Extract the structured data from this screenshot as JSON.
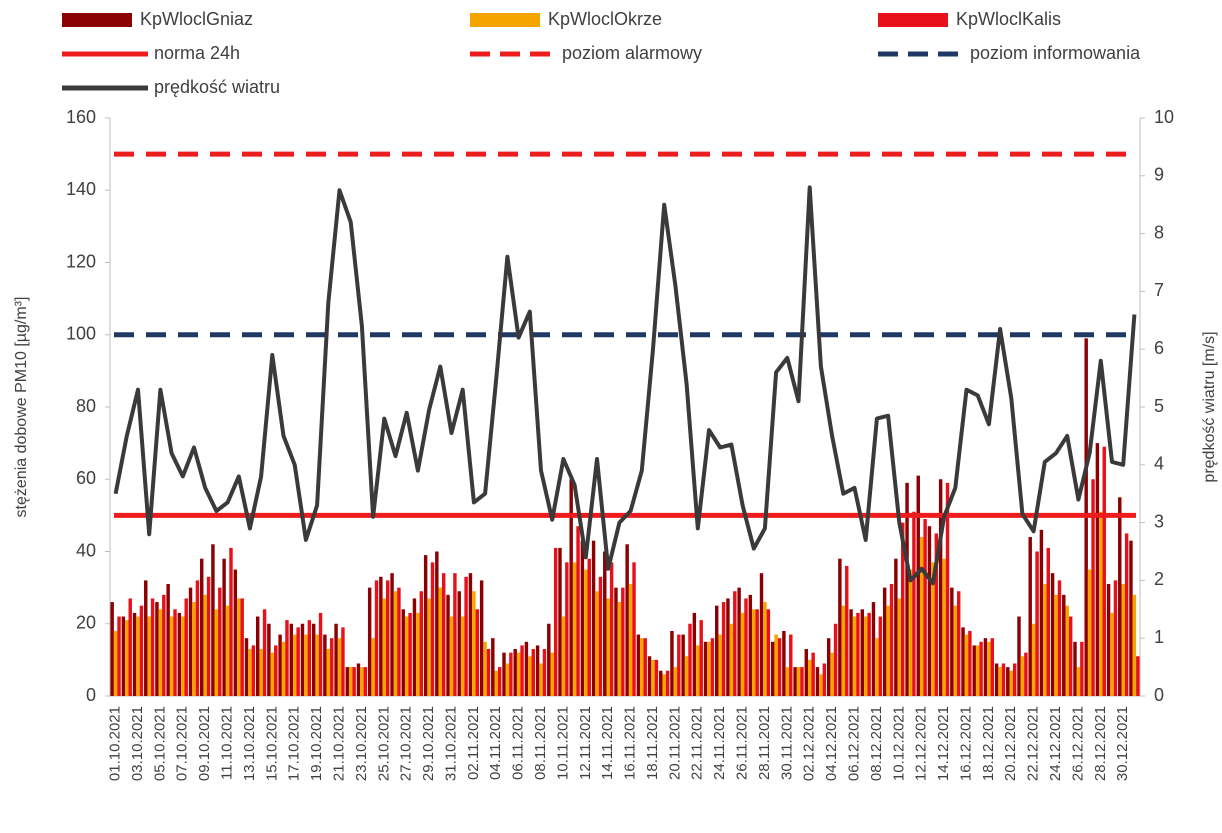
{
  "chart_data": {
    "type": "bar",
    "categories": [
      "01.10.2021",
      null,
      "03.10.2021",
      null,
      "05.10.2021",
      null,
      "07.10.2021",
      null,
      "09.10.2021",
      null,
      "11.10.2021",
      null,
      "13.10.2021",
      null,
      "15.10.2021",
      null,
      "17.10.2021",
      null,
      "19.10.2021",
      null,
      "21.10.2021",
      null,
      "23.10.2021",
      null,
      "25.10.2021",
      null,
      "27.10.2021",
      null,
      "29.10.2021",
      null,
      "31.10.2021",
      null,
      "02.11.2021",
      null,
      "04.11.2021",
      null,
      "06.11.2021",
      null,
      "08.11.2021",
      null,
      "10.11.2021",
      null,
      "12.11.2021",
      null,
      "14.11.2021",
      null,
      "16.11.2021",
      null,
      "18.11.2021",
      null,
      "20.11.2021",
      null,
      "22.11.2021",
      null,
      "24.11.2021",
      null,
      "26.11.2021",
      null,
      "28.11.2021",
      null,
      "30.11.2021",
      null,
      "02.12.2021",
      null,
      "04.12.2021",
      null,
      "06.12.2021",
      null,
      "08.12.2021",
      null,
      "10.12.2021",
      null,
      "12.12.2021",
      null,
      "14.12.2021",
      null,
      "16.12.2021",
      null,
      "18.12.2021",
      null,
      "20.12.2021",
      null,
      "22.12.2021",
      null,
      "24.12.2021",
      null,
      "26.12.2021",
      null,
      "28.12.2021",
      null,
      "30.12.2021",
      null
    ],
    "series": [
      {
        "name": "KpWloclGniaz",
        "type": "bar",
        "color": "#8b0000",
        "values": [
          26,
          22,
          23,
          32,
          26,
          31,
          23,
          30,
          38,
          42,
          38,
          35,
          16,
          22,
          20,
          17,
          20,
          20,
          20,
          17,
          20,
          8,
          9,
          30,
          33,
          34,
          24,
          27,
          39,
          40,
          28,
          29,
          34,
          32,
          16,
          12,
          13,
          15,
          14,
          20,
          41,
          60,
          43,
          43,
          40,
          30,
          42,
          17,
          11,
          7,
          18,
          17,
          23,
          15,
          25,
          27,
          30,
          28,
          34,
          15,
          18,
          8,
          13,
          8,
          16,
          38,
          24,
          24,
          26,
          30,
          38,
          59,
          61,
          47,
          60,
          30,
          19,
          14,
          16,
          9,
          8,
          22,
          44,
          46,
          34,
          28,
          15,
          99,
          70,
          31,
          55,
          43
        ]
      },
      {
        "name": "KpWloclOkrze",
        "type": "bar",
        "color": "#f5a400",
        "values": [
          18,
          21,
          22,
          22,
          24,
          22,
          22,
          26,
          28,
          24,
          25,
          27,
          13,
          13,
          12,
          15,
          17,
          17,
          17,
          13,
          16,
          8,
          8,
          16,
          27,
          29,
          22,
          23,
          27,
          30,
          22,
          22,
          29,
          15,
          7,
          9,
          12,
          11,
          9,
          12,
          22,
          37,
          35,
          29,
          27,
          26,
          31,
          16,
          10,
          6,
          8,
          11,
          14,
          15,
          17,
          20,
          23,
          24,
          26,
          17,
          8,
          8,
          10,
          6,
          12,
          25,
          22,
          22,
          16,
          25,
          27,
          35,
          44,
          37,
          38,
          25,
          17,
          14,
          15,
          8,
          7,
          11,
          20,
          31,
          28,
          25,
          8,
          35,
          51,
          23,
          31,
          28
        ]
      },
      {
        "name": "KpWloclKalis",
        "type": "bar",
        "color": "#e8101a",
        "values": [
          22,
          27,
          25,
          27,
          28,
          24,
          27,
          32,
          33,
          30,
          41,
          27,
          14,
          24,
          14,
          21,
          19,
          21,
          23,
          16,
          19,
          8,
          8,
          32,
          32,
          30,
          23,
          29,
          37,
          34,
          34,
          33,
          24,
          13,
          8,
          12,
          14,
          13,
          13,
          41,
          37,
          47,
          38,
          33,
          37,
          30,
          37,
          16,
          10,
          7,
          17,
          20,
          21,
          16,
          26,
          29,
          27,
          24,
          24,
          16,
          17,
          8,
          12,
          9,
          20,
          36,
          23,
          23,
          22,
          31,
          48,
          51,
          49,
          45,
          59,
          29,
          18,
          15,
          16,
          9,
          9,
          12,
          40,
          41,
          32,
          22,
          15,
          60,
          69,
          32,
          45,
          11
        ]
      },
      {
        "name": "prędkość wiatru",
        "type": "line",
        "axis": "y2",
        "color": "#3a3a3a",
        "values": [
          3.5,
          4.5,
          5.3,
          2.8,
          5.3,
          4.2,
          3.8,
          4.3,
          3.6,
          3.2,
          3.35,
          3.8,
          2.9,
          3.8,
          5.9,
          4.5,
          4.0,
          2.7,
          3.3,
          6.8,
          8.75,
          8.2,
          6.4,
          3.1,
          4.8,
          4.15,
          4.9,
          3.9,
          4.95,
          5.7,
          4.55,
          5.3,
          3.35,
          3.5,
          5.5,
          7.6,
          6.2,
          6.65,
          3.9,
          3.05,
          4.1,
          3.65,
          2.4,
          4.1,
          2.2,
          3.0,
          3.2,
          3.9,
          6.0,
          8.5,
          7.1,
          5.4,
          2.9,
          4.6,
          4.3,
          4.35,
          3.3,
          2.55,
          2.9,
          5.6,
          5.85,
          5.1,
          8.8,
          5.7,
          4.5,
          3.5,
          3.6,
          2.7,
          4.8,
          4.85,
          3.0,
          2.0,
          2.2,
          1.95,
          3.1,
          3.6,
          5.3,
          5.2,
          4.7,
          6.35,
          5.15,
          3.15,
          2.85,
          4.05,
          4.2,
          4.5,
          3.4,
          4.2,
          5.8,
          4.05,
          4.0,
          6.6
        ]
      }
    ],
    "reference_lines": [
      {
        "name": "norma 24h",
        "value": 50,
        "color": "#ee1c1c",
        "dashed": false
      },
      {
        "name": "poziom alarmowy",
        "value": 150,
        "color": "#ee1c1c",
        "dashed": true
      },
      {
        "name": "poziom informowania",
        "value": 100,
        "color": "#1f3864",
        "dashed": true
      }
    ],
    "y_label": "stężenia dobowe PM10 [µg/m³]",
    "y2_label": "prędkość wiatru [m/s]",
    "ylim": [
      0,
      160
    ],
    "yticks": [
      0,
      20,
      40,
      60,
      80,
      100,
      120,
      140,
      160
    ],
    "y2lim": [
      0,
      10
    ],
    "y2ticks": [
      0,
      1,
      2,
      3,
      4,
      5,
      6,
      7,
      8,
      9,
      10
    ],
    "legend": "top"
  }
}
